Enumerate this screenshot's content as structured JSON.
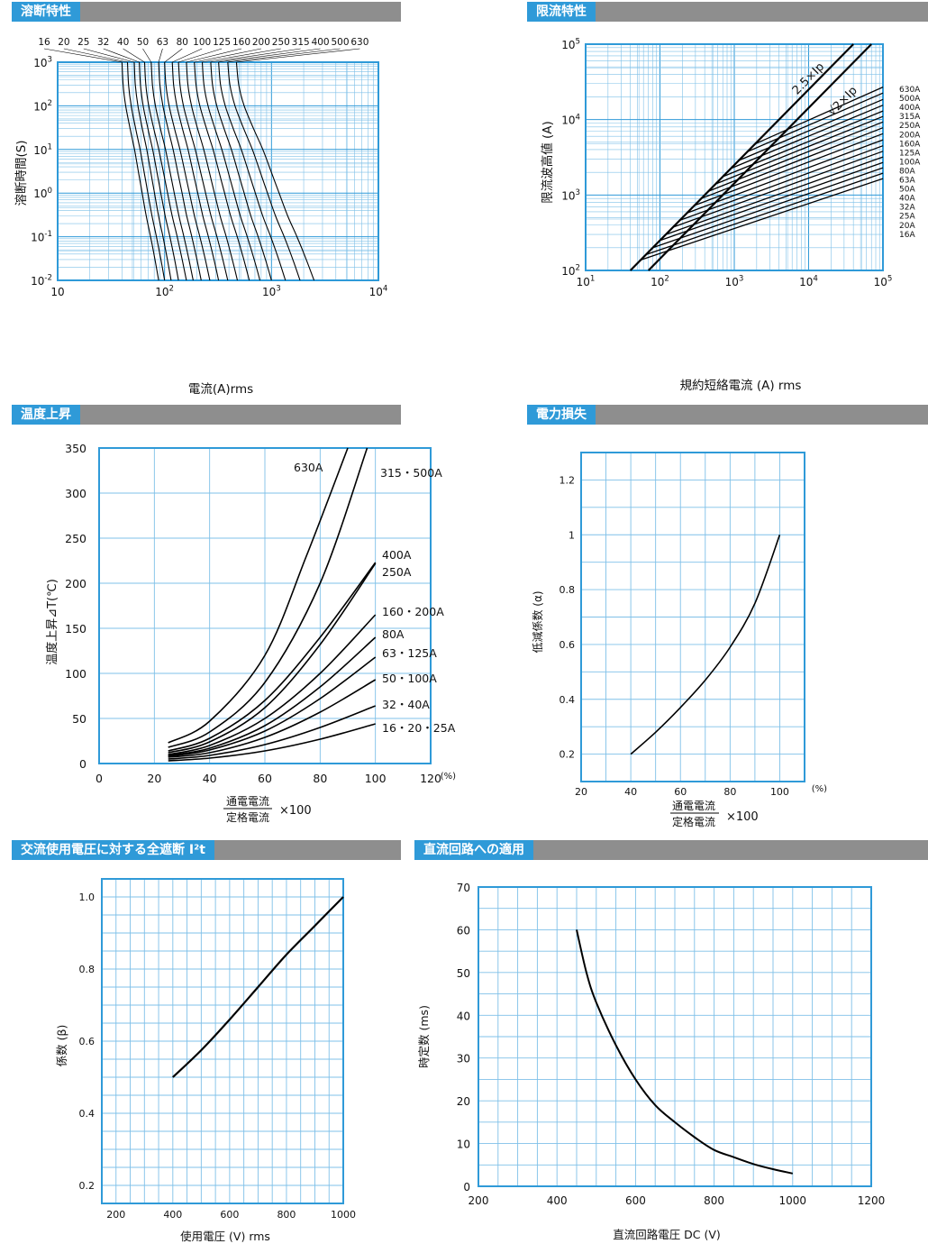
{
  "sections": {
    "fusing": "溶断特性",
    "limiting": "限流特性",
    "temperature": "温度上昇",
    "power": "電力損失",
    "ac_i2t": "交流使用電圧に対する全遮断 I²t",
    "dc": "直流回路への適用"
  },
  "colors": {
    "grid": "#2f9ad8",
    "grid_minor": "#7fc0e8",
    "header": "#2f9ad8",
    "bar": "#8e8e8e",
    "curve": "#000000"
  },
  "chart_data": [
    {
      "id": "fusing",
      "type": "line",
      "xlabel": "電流(A)rms",
      "ylabel": "溶断時間(S)",
      "xscale": "log",
      "yscale": "log",
      "xlim": [
        10,
        10000
      ],
      "ylim": [
        0.01,
        1000
      ],
      "xticks": [
        {
          "v": 10,
          "b": "10",
          "e": ""
        },
        {
          "v": 100,
          "b": "10",
          "e": "2"
        },
        {
          "v": 1000,
          "b": "10",
          "e": "3"
        },
        {
          "v": 10000,
          "b": "10",
          "e": "4"
        }
      ],
      "yticks": [
        {
          "v": 0.01,
          "b": "10",
          "e": "-2"
        },
        {
          "v": 0.1,
          "b": "10",
          "e": "-1"
        },
        {
          "v": 1,
          "b": "10",
          "e": "0"
        },
        {
          "v": 10,
          "b": "10",
          "e": "1"
        },
        {
          "v": 100,
          "b": "10",
          "e": "2"
        },
        {
          "v": 1000,
          "b": "10",
          "e": "3"
        }
      ],
      "ratings": [
        "16",
        "20",
        "25",
        "32",
        "40",
        "50",
        "63",
        "80",
        "100",
        "125",
        "160",
        "200",
        "250",
        "315",
        "400",
        "500",
        "630"
      ],
      "series": [
        {
          "name": "16",
          "i_top": 40,
          "i_bottom": 88
        },
        {
          "name": "20",
          "i_top": 45,
          "i_bottom": 100
        },
        {
          "name": "25",
          "i_top": 52,
          "i_bottom": 115
        },
        {
          "name": "32",
          "i_top": 58,
          "i_bottom": 135
        },
        {
          "name": "40",
          "i_top": 65,
          "i_bottom": 160
        },
        {
          "name": "50",
          "i_top": 75,
          "i_bottom": 185
        },
        {
          "name": "63",
          "i_top": 88,
          "i_bottom": 220
        },
        {
          "name": "80",
          "i_top": 100,
          "i_bottom": 265
        },
        {
          "name": "100",
          "i_top": 118,
          "i_bottom": 320
        },
        {
          "name": "125",
          "i_top": 135,
          "i_bottom": 390
        },
        {
          "name": "160",
          "i_top": 160,
          "i_bottom": 480
        },
        {
          "name": "200",
          "i_top": 190,
          "i_bottom": 620
        },
        {
          "name": "250",
          "i_top": 225,
          "i_bottom": 780
        },
        {
          "name": "315",
          "i_top": 270,
          "i_bottom": 1000
        },
        {
          "name": "400",
          "i_top": 320,
          "i_bottom": 1350
        },
        {
          "name": "500",
          "i_top": 390,
          "i_bottom": 1850
        },
        {
          "name": "630",
          "i_top": 470,
          "i_bottom": 2500
        }
      ]
    },
    {
      "id": "limiting",
      "type": "line",
      "xlabel": "規約短絡電流 (A) rms",
      "ylabel": "限流波高値 (A)",
      "xscale": "log",
      "yscale": "log",
      "xlim": [
        10,
        100000
      ],
      "ylim": [
        100,
        100000
      ],
      "xticks": [
        {
          "v": 10,
          "b": "10",
          "e": "1"
        },
        {
          "v": 100,
          "b": "10",
          "e": "2"
        },
        {
          "v": 1000,
          "b": "10",
          "e": "3"
        },
        {
          "v": 10000,
          "b": "10",
          "e": "4"
        },
        {
          "v": 100000,
          "b": "10",
          "e": "5"
        }
      ],
      "yticks": [
        {
          "v": 100,
          "b": "10",
          "e": "2"
        },
        {
          "v": 1000,
          "b": "10",
          "e": "3"
        },
        {
          "v": 10000,
          "b": "10",
          "e": "4"
        },
        {
          "v": 100000,
          "b": "10",
          "e": "5"
        }
      ],
      "reference_lines": [
        {
          "label": "2.5×Ip",
          "x": [
            40,
            40000
          ],
          "y": [
            100,
            100000
          ]
        },
        {
          "label": "√2×Ip",
          "x": [
            70,
            70000
          ],
          "y": [
            100,
            100000
          ]
        }
      ],
      "series": [
        {
          "name": "630A",
          "x0": 1900,
          "y_end": 27000
        },
        {
          "name": "500A",
          "x0": 1500,
          "y_end": 22500
        },
        {
          "name": "400A",
          "x0": 1150,
          "y_end": 18500
        },
        {
          "name": "315A",
          "x0": 900,
          "y_end": 15500
        },
        {
          "name": "250A",
          "x0": 700,
          "y_end": 13000
        },
        {
          "name": "200A",
          "x0": 560,
          "y_end": 11000
        },
        {
          "name": "160A",
          "x0": 450,
          "y_end": 9300
        },
        {
          "name": "125A",
          "x0": 360,
          "y_end": 7800
        },
        {
          "name": "100A",
          "x0": 290,
          "y_end": 6500
        },
        {
          "name": "80A",
          "x0": 230,
          "y_end": 5400
        },
        {
          "name": "63A",
          "x0": 185,
          "y_end": 4500
        },
        {
          "name": "50A",
          "x0": 150,
          "y_end": 3800
        },
        {
          "name": "40A",
          "x0": 120,
          "y_end": 3200
        },
        {
          "name": "32A",
          "x0": 100,
          "y_end": 2700
        },
        {
          "name": "25A",
          "x0": 80,
          "y_end": 2300
        },
        {
          "name": "20A",
          "x0": 65,
          "y_end": 1950
        },
        {
          "name": "16A",
          "x0": 55,
          "y_end": 1650
        }
      ]
    },
    {
      "id": "temperature",
      "type": "line",
      "xlabel_num": "通電電流",
      "xlabel_den": "定格電流",
      "xlabel_mult": "×100",
      "x_unit": "(%)",
      "ylabel": "温度上昇⊿T(℃)",
      "xlim": [
        0,
        120
      ],
      "ylim": [
        0,
        350
      ],
      "xticks": [
        0,
        20,
        40,
        60,
        80,
        100,
        120
      ],
      "yticks": [
        0,
        50,
        100,
        150,
        200,
        250,
        300,
        350
      ],
      "series": [
        {
          "name": "630A",
          "points": [
            [
              25,
              23
            ],
            [
              40,
              47
            ],
            [
              60,
              120
            ],
            [
              75,
              230
            ],
            [
              90,
              350
            ]
          ]
        },
        {
          "name": "315・500A",
          "points": [
            [
              25,
              18
            ],
            [
              40,
              35
            ],
            [
              60,
              90
            ],
            [
              80,
              200
            ],
            [
              97,
              350
            ]
          ]
        },
        {
          "name": "400A",
          "points": [
            [
              25,
              14
            ],
            [
              40,
              28
            ],
            [
              60,
              70
            ],
            [
              80,
              140
            ],
            [
              100,
              223
            ]
          ]
        },
        {
          "name": "250A",
          "points": [
            [
              25,
              12
            ],
            [
              40,
              24
            ],
            [
              60,
              62
            ],
            [
              80,
              132
            ],
            [
              100,
              222
            ]
          ]
        },
        {
          "name": "160・200A",
          "points": [
            [
              25,
              10
            ],
            [
              40,
              20
            ],
            [
              60,
              50
            ],
            [
              80,
              100
            ],
            [
              100,
              165
            ]
          ]
        },
        {
          "name": "80A",
          "points": [
            [
              25,
              9
            ],
            [
              40,
              17
            ],
            [
              60,
              42
            ],
            [
              80,
              85
            ],
            [
              100,
              140
            ]
          ]
        },
        {
          "name": "63・125A",
          "points": [
            [
              25,
              8
            ],
            [
              40,
              15
            ],
            [
              60,
              36
            ],
            [
              80,
              72
            ],
            [
              100,
              118
            ]
          ]
        },
        {
          "name": "50・100A",
          "points": [
            [
              25,
              7
            ],
            [
              40,
              12
            ],
            [
              60,
              29
            ],
            [
              80,
              57
            ],
            [
              100,
              93
            ]
          ]
        },
        {
          "name": "32・40A",
          "points": [
            [
              25,
              5
            ],
            [
              40,
              9
            ],
            [
              60,
              21
            ],
            [
              80,
              40
            ],
            [
              100,
              64
            ]
          ]
        },
        {
          "name": "16・20・25A",
          "points": [
            [
              25,
              3
            ],
            [
              40,
              6
            ],
            [
              60,
              14
            ],
            [
              80,
              27
            ],
            [
              100,
              44
            ]
          ]
        }
      ]
    },
    {
      "id": "power",
      "type": "line",
      "xlabel_num": "通電電流",
      "xlabel_den": "定格電流",
      "xlabel_mult": "×100",
      "x_unit": "(%)",
      "ylabel": "低減係数 (α)",
      "xlim": [
        20,
        110
      ],
      "ylim": [
        0.1,
        1.3
      ],
      "xticks": [
        20,
        40,
        60,
        80,
        100
      ],
      "yticks": [
        0.2,
        0.4,
        0.6,
        0.8,
        1,
        1.2
      ],
      "series": [
        {
          "name": "",
          "points": [
            [
              40,
              0.2
            ],
            [
              50,
              0.28
            ],
            [
              60,
              0.37
            ],
            [
              70,
              0.47
            ],
            [
              80,
              0.59
            ],
            [
              90,
              0.75
            ],
            [
              100,
              1.0
            ]
          ]
        }
      ]
    },
    {
      "id": "ac_i2t",
      "type": "line",
      "xlabel": "使用電圧 (V) rms",
      "ylabel": "係数 (β)",
      "xlim": [
        150,
        1000
      ],
      "ylim": [
        0.15,
        1.05
      ],
      "xticks": [
        200,
        400,
        600,
        800,
        1000
      ],
      "yticks": [
        0.2,
        0.4,
        0.6,
        0.8,
        1.0
      ],
      "series": [
        {
          "name": "",
          "points": [
            [
              400,
              0.5
            ],
            [
              500,
              0.575
            ],
            [
              600,
              0.66
            ],
            [
              700,
              0.75
            ],
            [
              800,
              0.84
            ],
            [
              900,
              0.92
            ],
            [
              1000,
              1.0
            ]
          ]
        }
      ]
    },
    {
      "id": "dc",
      "type": "line",
      "xlabel": "直流回路電圧 DC (V)",
      "ylabel": "時定数 (ms)",
      "xlim": [
        200,
        1200
      ],
      "ylim": [
        0,
        70
      ],
      "xticks": [
        200,
        400,
        600,
        800,
        1000,
        1200
      ],
      "yticks": [
        0,
        10,
        20,
        30,
        40,
        50,
        60,
        70
      ],
      "series": [
        {
          "name": "",
          "points": [
            [
              450,
              60
            ],
            [
              475,
              50
            ],
            [
              500,
              43
            ],
            [
              550,
              33
            ],
            [
              600,
              25
            ],
            [
              650,
              19
            ],
            [
              700,
              15
            ],
            [
              750,
              11.5
            ],
            [
              800,
              8.5
            ],
            [
              850,
              6.8
            ],
            [
              900,
              5.2
            ],
            [
              950,
              4
            ],
            [
              1000,
              3
            ]
          ]
        }
      ]
    }
  ]
}
